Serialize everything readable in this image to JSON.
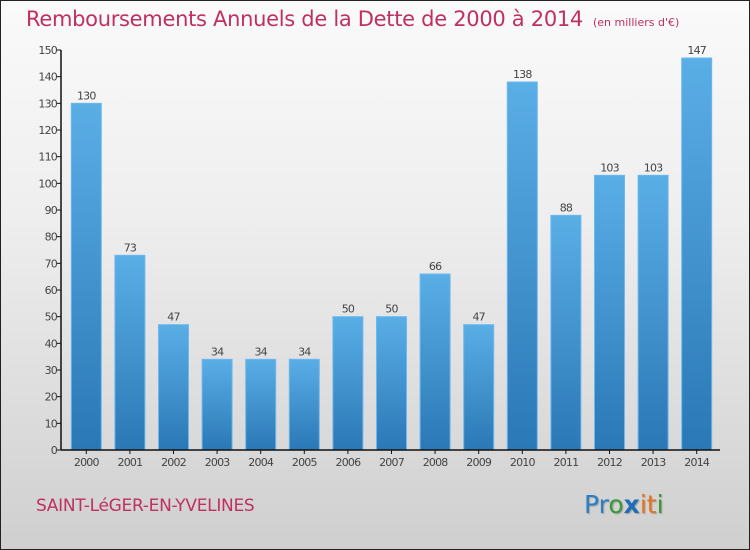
{
  "header": {
    "title": "Remboursements Annuels de la Dette de 2000 à 2014",
    "unit": "(en milliers d'€)"
  },
  "footer": {
    "place": "SAINT-LéGER-EN-YVELINES",
    "logo": [
      {
        "text": "Pr",
        "color": "#2a7fc4"
      },
      {
        "text": "o",
        "color": "#3a9a3a"
      },
      {
        "text": "x",
        "color": "#1f6fb8"
      },
      {
        "text": "i",
        "color": "#e8731b"
      },
      {
        "text": "t",
        "color": "#e8731b"
      },
      {
        "text": "i",
        "color": "#3a9a3a"
      }
    ]
  },
  "colors": {
    "title": "#c0305f",
    "bar_top": "#5aaee6",
    "bar_bottom": "#2a78b6",
    "axis": "#111111",
    "label": "#444444"
  },
  "chart_data": {
    "type": "bar",
    "title": "Remboursements Annuels de la Dette de 2000 à 2014",
    "subtitle": "(en milliers d'€)",
    "xlabel": "",
    "ylabel": "",
    "categories": [
      "2000",
      "2001",
      "2002",
      "2003",
      "2004",
      "2005",
      "2006",
      "2007",
      "2008",
      "2009",
      "2010",
      "2011",
      "2012",
      "2013",
      "2014"
    ],
    "values": [
      130,
      73,
      47,
      34,
      34,
      34,
      50,
      50,
      66,
      47,
      138,
      88,
      103,
      103,
      147
    ],
    "ylim": [
      0,
      150
    ],
    "yticks": [
      0,
      10,
      20,
      30,
      40,
      50,
      60,
      70,
      80,
      90,
      100,
      110,
      120,
      130,
      140,
      150
    ],
    "grid": false,
    "legend": "none",
    "data_labels": true
  }
}
